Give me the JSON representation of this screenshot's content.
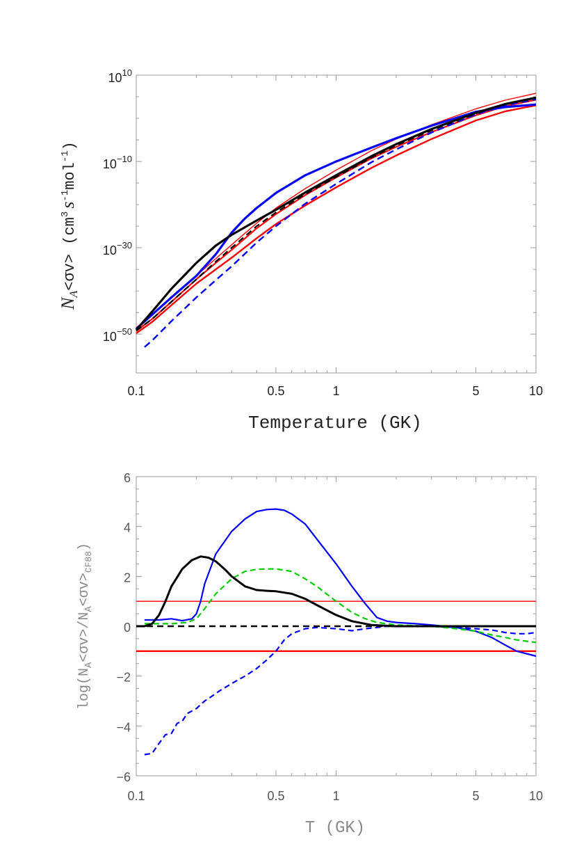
{
  "chart_data": [
    {
      "type": "line",
      "xscale": "log",
      "yscale": "log",
      "xlim": [
        0.1,
        10
      ],
      "ylim_exponent": [
        -59,
        10
      ],
      "xlabel": "Temperature (GK)",
      "ylabel": "N_A<σv>  (cm^3 s^-1 mol^-1)",
      "ylabel_parts": {
        "main": "N",
        "sub": "A",
        "rest": "<σv>  (cm",
        "sup1": "3",
        "mid": "s",
        "sup2": "-1",
        "end": "mol",
        "sup3": "-1",
        "close": ")"
      },
      "xticks": [
        {
          "value": 0.1,
          "label": "0.1"
        },
        {
          "value": 0.5,
          "label": "0.5"
        },
        {
          "value": 1,
          "label": "1"
        },
        {
          "value": 5,
          "label": "5"
        },
        {
          "value": 10,
          "label": "10"
        }
      ],
      "yticks": [
        {
          "exp": 10,
          "base": "10",
          "sup": "10"
        },
        {
          "exp": -10,
          "base": "10",
          "sup": "−10"
        },
        {
          "exp": -30,
          "base": "10",
          "sup": "−30"
        },
        {
          "exp": -50,
          "base": "10",
          "sup": "−50"
        }
      ],
      "series": [
        {
          "name": "red-upper",
          "color": "#ff0000",
          "width": 1.4,
          "dash": "",
          "x": [
            0.1,
            0.12,
            0.15,
            0.2,
            0.25,
            0.3,
            0.4,
            0.5,
            0.7,
            1,
            1.5,
            2,
            3,
            5,
            7,
            10
          ],
          "y": [
            -48.5,
            -45.5,
            -41.5,
            -36.5,
            -32.5,
            -29.3,
            -24.3,
            -20.8,
            -16.3,
            -12,
            -7.5,
            -4.8,
            -1.5,
            2.2,
            4.2,
            5.8
          ]
        },
        {
          "name": "red-mid",
          "color": "#ff0000",
          "width": 2.2,
          "dash": "",
          "x": [
            0.1,
            0.12,
            0.15,
            0.2,
            0.25,
            0.3,
            0.4,
            0.5,
            0.7,
            1,
            1.5,
            2,
            3,
            5,
            7,
            10
          ],
          "y": [
            -49.3,
            -46.5,
            -42.5,
            -37.3,
            -33.5,
            -30.5,
            -25.5,
            -22.2,
            -17.8,
            -13.7,
            -9.3,
            -6.6,
            -3.2,
            0.7,
            2.8,
            4.3
          ]
        },
        {
          "name": "red-lower",
          "color": "#ff0000",
          "width": 2.4,
          "dash": "",
          "x": [
            0.1,
            0.12,
            0.15,
            0.2,
            0.25,
            0.3,
            0.4,
            0.5,
            0.7,
            1,
            1.5,
            2,
            3,
            5,
            7,
            10
          ],
          "y": [
            -49.8,
            -47.2,
            -43.3,
            -38.3,
            -35,
            -32.3,
            -27.8,
            -24.5,
            -20.2,
            -16,
            -11.5,
            -8.6,
            -4.8,
            -0.5,
            1.6,
            3
          ]
        },
        {
          "name": "blue-thick",
          "color": "#0000ff",
          "width": 3.2,
          "dash": "",
          "x": [
            0.1,
            0.12,
            0.15,
            0.2,
            0.25,
            0.3,
            0.35,
            0.4,
            0.5,
            0.7,
            1,
            1.5,
            2,
            3,
            5,
            7,
            10
          ],
          "y": [
            -48.8,
            -45.5,
            -41.5,
            -36.5,
            -31.5,
            -26.5,
            -23.2,
            -20.8,
            -17.3,
            -13.2,
            -10,
            -6.8,
            -4.6,
            -1.7,
            1.5,
            2.6,
            3.2
          ]
        },
        {
          "name": "blue-dashed",
          "color": "#0000ff",
          "width": 2.4,
          "dash": "10,6",
          "x": [
            0.11,
            0.12,
            0.15,
            0.2,
            0.25,
            0.3,
            0.4,
            0.5,
            0.7,
            1,
            1.5,
            2,
            3,
            5,
            7,
            10
          ],
          "y": [
            -53,
            -51.5,
            -47,
            -41.5,
            -37.5,
            -34.3,
            -28.8,
            -25,
            -19.8,
            -15.2,
            -10.2,
            -7.2,
            -3.3,
            0.9,
            3,
            4.4
          ]
        },
        {
          "name": "black-thick",
          "color": "#000000",
          "width": 3.2,
          "dash": "",
          "x": [
            0.1,
            0.12,
            0.15,
            0.2,
            0.25,
            0.3,
            0.4,
            0.5,
            0.7,
            1,
            1.5,
            2,
            3,
            5,
            7,
            10
          ],
          "y": [
            -49,
            -44.8,
            -39.5,
            -33.5,
            -29.5,
            -27,
            -23.7,
            -21.2,
            -17.2,
            -13.2,
            -8.8,
            -6,
            -2.5,
            1.3,
            3.3,
            4.8
          ]
        },
        {
          "name": "black-dashed",
          "color": "#000000",
          "width": 2.2,
          "dash": "9,6",
          "x": [
            0.1,
            0.12,
            0.15,
            0.2,
            0.25,
            0.3,
            0.4,
            0.5,
            0.7,
            1,
            1.5,
            2,
            3,
            5,
            7,
            10
          ],
          "y": [
            -49.2,
            -46.5,
            -42.5,
            -37.3,
            -33.2,
            -30,
            -25,
            -21.8,
            -17.6,
            -13.6,
            -9.1,
            -6.3,
            -2.8,
            1.1,
            3.2,
            4.7
          ]
        }
      ]
    },
    {
      "type": "line",
      "xscale": "log",
      "yscale": "linear",
      "xlim": [
        0.1,
        10
      ],
      "ylim": [
        -6,
        6
      ],
      "xlabel": "T (GK)",
      "ylabel": "log(N_A<σv>/N_A<σv>_CF88)",
      "ylabel_parts": {
        "pre": "log(N",
        "sub1": "A",
        "mid": "<σv>/N",
        "sub2": "A",
        "rest": "<σv>",
        "sub3": "CF88",
        "close": ")"
      },
      "xticks": [
        {
          "value": 0.1,
          "label": "0.1"
        },
        {
          "value": 0.5,
          "label": "0.5"
        },
        {
          "value": 1,
          "label": "1"
        },
        {
          "value": 5,
          "label": "5"
        },
        {
          "value": 10,
          "label": "10"
        }
      ],
      "yticks": [
        {
          "value": 6,
          "label": "6"
        },
        {
          "value": 4,
          "label": "4"
        },
        {
          "value": 2,
          "label": "2"
        },
        {
          "value": 0,
          "label": "0"
        },
        {
          "value": -2,
          "label": "−2"
        },
        {
          "value": -4,
          "label": "−4"
        },
        {
          "value": -6,
          "label": "−6"
        }
      ],
      "series": [
        {
          "name": "red-plus-one",
          "color": "#ff0000",
          "width": 1.4,
          "dash": "",
          "x": [
            0.1,
            10
          ],
          "y": [
            1,
            1
          ]
        },
        {
          "name": "red-minus-one",
          "color": "#ff0000",
          "width": 2.4,
          "dash": "",
          "x": [
            0.1,
            10
          ],
          "y": [
            -1,
            -1
          ]
        },
        {
          "name": "blue-solid",
          "color": "#0000ff",
          "width": 2.2,
          "dash": "",
          "x": [
            0.11,
            0.13,
            0.15,
            0.17,
            0.19,
            0.2,
            0.21,
            0.22,
            0.25,
            0.3,
            0.35,
            0.4,
            0.45,
            0.5,
            0.55,
            0.6,
            0.7,
            0.8,
            1,
            1.2,
            1.4,
            1.6,
            1.8,
            2,
            2.5,
            3,
            4,
            5,
            6,
            7,
            8,
            10
          ],
          "y": [
            0.25,
            0.25,
            0.3,
            0.22,
            0.3,
            0.5,
            1.0,
            1.7,
            2.9,
            3.8,
            4.3,
            4.6,
            4.68,
            4.7,
            4.65,
            4.5,
            4.1,
            3.5,
            2.5,
            1.6,
            0.9,
            0.35,
            0.2,
            0.15,
            0.1,
            0.05,
            -0.05,
            -0.2,
            -0.45,
            -0.75,
            -1.0,
            -1.2
          ]
        },
        {
          "name": "blue-dashed",
          "color": "#0000ff",
          "width": 2.2,
          "dash": "8,5",
          "x": [
            0.11,
            0.12,
            0.13,
            0.14,
            0.15,
            0.16,
            0.17,
            0.18,
            0.19,
            0.2,
            0.22,
            0.24,
            0.26,
            0.3,
            0.35,
            0.4,
            0.45,
            0.5,
            0.55,
            0.6,
            0.7,
            0.8,
            1,
            1.2,
            1.4,
            1.6,
            1.8,
            2,
            3,
            4,
            5,
            6,
            7,
            8,
            9,
            10
          ],
          "y": [
            -5.15,
            -5.1,
            -4.7,
            -4.35,
            -4.3,
            -3.9,
            -3.8,
            -3.5,
            -3.4,
            -3.3,
            -3.0,
            -2.8,
            -2.6,
            -2.3,
            -2.0,
            -1.7,
            -1.35,
            -1.0,
            -0.55,
            -0.3,
            -0.1,
            -0.05,
            -0.1,
            -0.18,
            -0.1,
            -0.05,
            0.0,
            0.0,
            0.0,
            -0.05,
            -0.1,
            -0.15,
            -0.25,
            -0.3,
            -0.3,
            -0.25
          ]
        },
        {
          "name": "green-dashed",
          "color": "#00cc00",
          "width": 2.2,
          "dash": "8,5",
          "x": [
            0.11,
            0.15,
            0.18,
            0.2,
            0.22,
            0.25,
            0.3,
            0.35,
            0.4,
            0.45,
            0.5,
            0.6,
            0.7,
            0.8,
            1,
            1.2,
            1.4,
            1.6,
            2,
            3,
            4,
            5,
            6,
            7,
            8,
            10
          ],
          "y": [
            0.1,
            0.1,
            0.15,
            0.3,
            0.7,
            1.3,
            1.9,
            2.2,
            2.28,
            2.3,
            2.3,
            2.2,
            1.9,
            1.6,
            1.0,
            0.55,
            0.3,
            0.15,
            0.05,
            0.0,
            -0.1,
            -0.2,
            -0.35,
            -0.45,
            -0.55,
            -0.65
          ]
        },
        {
          "name": "black-dashed",
          "color": "#000000",
          "width": 2.4,
          "dash": "9,6",
          "x": [
            0.1,
            10
          ],
          "y": [
            0,
            0
          ]
        },
        {
          "name": "black-solid",
          "color": "#000000",
          "width": 3.0,
          "dash": "",
          "x": [
            0.1,
            0.11,
            0.12,
            0.13,
            0.14,
            0.15,
            0.17,
            0.19,
            0.21,
            0.23,
            0.25,
            0.28,
            0.3,
            0.35,
            0.4,
            0.45,
            0.5,
            0.6,
            0.7,
            0.8,
            1,
            1.2,
            1.5,
            2,
            3,
            5,
            10
          ],
          "y": [
            0,
            0.0,
            0.1,
            0.45,
            1.0,
            1.6,
            2.3,
            2.65,
            2.8,
            2.75,
            2.6,
            2.25,
            2.0,
            1.6,
            1.45,
            1.42,
            1.4,
            1.3,
            1.1,
            0.85,
            0.45,
            0.2,
            0.05,
            0.0,
            0.0,
            0.0,
            0.0
          ]
        }
      ]
    }
  ]
}
